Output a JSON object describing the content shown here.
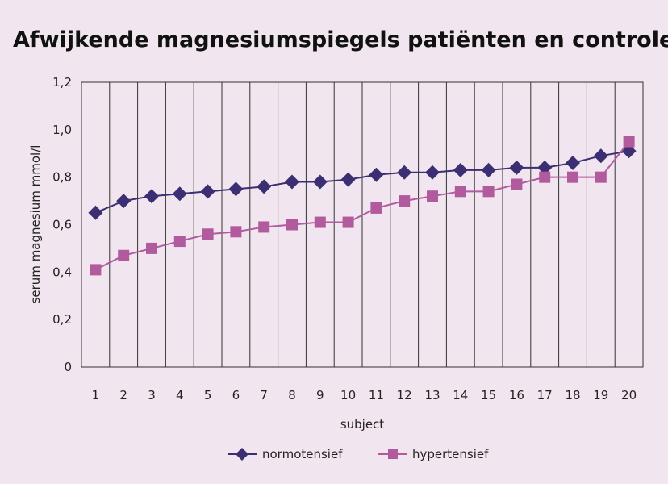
{
  "chart_data": {
    "type": "line",
    "title": "Afwijkende magnesiumspiegels patiënten en controles",
    "xlabel": "subject",
    "ylabel": "serum magnesium mmol/l",
    "categories": [
      "1",
      "2",
      "3",
      "4",
      "5",
      "6",
      "7",
      "8",
      "9",
      "10",
      "11",
      "12",
      "13",
      "14",
      "15",
      "16",
      "17",
      "18",
      "19",
      "20"
    ],
    "ylim": [
      0,
      1.2
    ],
    "yticks": [
      "0",
      "0,2",
      "0,4",
      "0,6",
      "0,8",
      "1,0",
      "1,2"
    ],
    "ytick_values": [
      0,
      0.2,
      0.4,
      0.6,
      0.8,
      1.0,
      1.2
    ],
    "grid": "vertical",
    "legend_position": "bottom",
    "series": [
      {
        "name": "normotensief",
        "marker": "diamond",
        "color": "#3b2e72",
        "values": [
          0.65,
          0.7,
          0.72,
          0.73,
          0.74,
          0.75,
          0.76,
          0.78,
          0.78,
          0.79,
          0.81,
          0.82,
          0.82,
          0.83,
          0.83,
          0.84,
          0.84,
          0.86,
          0.89,
          0.91
        ]
      },
      {
        "name": "hypertensief",
        "marker": "square",
        "color": "#b25a9e",
        "values": [
          0.41,
          0.47,
          0.5,
          0.53,
          0.56,
          0.57,
          0.59,
          0.6,
          0.61,
          0.61,
          0.67,
          0.7,
          0.72,
          0.74,
          0.74,
          0.77,
          0.8,
          0.8,
          0.8,
          0.95
        ]
      }
    ]
  }
}
